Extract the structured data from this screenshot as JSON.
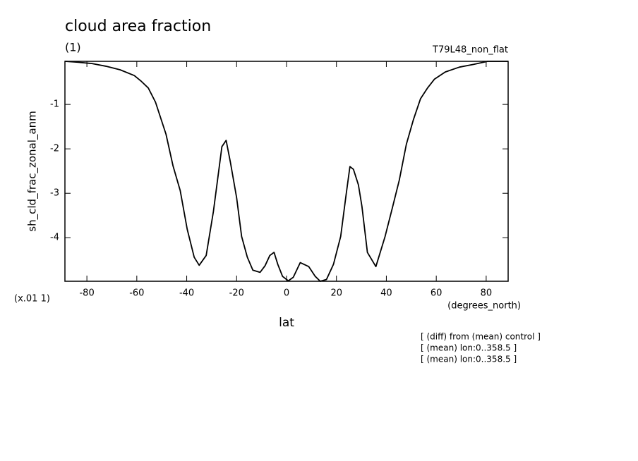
{
  "chart_data": {
    "type": "line",
    "title": "cloud area fraction",
    "subtitle": "(1)",
    "annotation": "T79L48_non_flat",
    "y_label": "sh_cld_frac_zonal_anm",
    "y_scale_note": "(x.01 1)",
    "x_label": "lat",
    "x_units": "(degrees_north)",
    "notes": [
      "[ (diff) from (mean) control ]",
      "[ (mean) lon:0..358.5 ]",
      "[ (mean) lon:0..358.5 ]"
    ],
    "color": "#000000",
    "x": [
      -88.8,
      -83.7,
      -78,
      -72.4,
      -66.7,
      -61,
      -58.2,
      -55.4,
      -52.5,
      -48.3,
      -45.5,
      -42.6,
      -39.8,
      -37,
      -35,
      -32.2,
      -29.3,
      -25.9,
      -24.2,
      -22.5,
      -20,
      -18,
      -15.7,
      -13.5,
      -10.6,
      -8.6,
      -6.7,
      -5,
      -3.5,
      -1.6,
      0.7,
      2.7,
      5.5,
      8.9,
      11.5,
      13.5,
      16,
      18.8,
      21.7,
      23.9,
      25.4,
      26.8,
      28.8,
      30.2,
      32.4,
      35.8,
      39.5,
      42.4,
      45.2,
      48,
      50.8,
      53.7,
      56.5,
      59.3,
      63.6,
      69.3,
      74.9,
      80.6,
      88.8
    ],
    "values": [
      -0.03,
      -0.05,
      -0.08,
      -0.14,
      -0.22,
      -0.35,
      -0.48,
      -0.63,
      -0.95,
      -1.67,
      -2.38,
      -2.94,
      -3.81,
      -4.44,
      -4.62,
      -4.4,
      -3.41,
      -1.95,
      -1.81,
      -2.3,
      -3.1,
      -3.97,
      -4.44,
      -4.73,
      -4.78,
      -4.63,
      -4.4,
      -4.33,
      -4.6,
      -4.87,
      -4.97,
      -4.89,
      -4.56,
      -4.65,
      -4.87,
      -4.98,
      -4.94,
      -4.6,
      -3.97,
      -3.02,
      -2.4,
      -2.46,
      -2.81,
      -3.29,
      -4.33,
      -4.65,
      -3.97,
      -3.33,
      -2.7,
      -1.9,
      -1.35,
      -0.87,
      -0.63,
      -0.43,
      -0.27,
      -0.16,
      -0.1,
      -0.03,
      -0.03
    ],
    "xlim": [
      -88.8,
      88.8
    ],
    "ylim": [
      -4.98,
      -0.03
    ],
    "xticks": [
      -80,
      -60,
      -40,
      -20,
      0,
      20,
      40,
      60,
      80
    ],
    "yticks": [
      -4,
      -3,
      -2,
      -1
    ]
  }
}
